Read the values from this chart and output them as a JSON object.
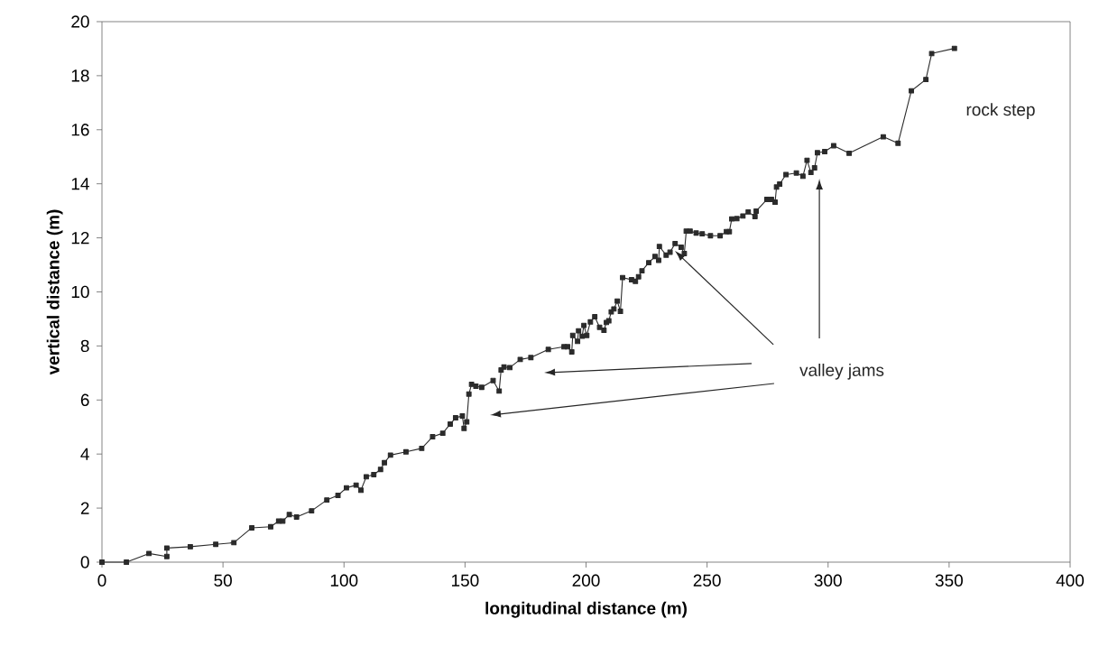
{
  "chart_data": {
    "type": "line",
    "xlabel": "longitudinal distance (m)",
    "ylabel": "vertical distance (m)",
    "xlim": [
      0,
      400
    ],
    "xticks": [
      0,
      50,
      100,
      150,
      200,
      250,
      300,
      350,
      400
    ],
    "ylim": [
      0,
      20
    ],
    "yticks": [
      0,
      2,
      4,
      6,
      8,
      10,
      12,
      14,
      16,
      18,
      20
    ],
    "grid": false,
    "marker": "square",
    "line_style": "solid",
    "annotations": [
      "valley jams",
      "rock step"
    ],
    "series": [
      {
        "color": "#2b2b2b",
        "x": [
          0,
          10.1,
          19.4,
          26.8,
          26.8,
          36.5,
          47,
          54.5,
          61.9,
          69.7,
          73,
          74.7,
          77.4,
          80.4,
          86.6,
          92.9,
          97.5,
          101,
          105,
          107,
          109.2,
          112.3,
          115.1,
          116.7,
          119.2,
          125.6,
          132.1,
          136.6,
          140.8,
          143.9,
          146.1,
          148.9,
          149.6,
          150.7,
          151.6,
          152.7,
          154.5,
          156.9,
          161.6,
          164.1,
          164.9,
          166.1,
          168.5,
          172.8,
          177.2,
          184.4,
          190.9,
          192.4,
          194.1,
          194.5,
          196.5,
          196.9,
          198.4,
          199.1,
          200.3,
          201.8,
          203.6,
          205.6,
          207.4,
          208.4,
          209.4,
          210.4,
          211.5,
          212.9,
          214.2,
          215.1,
          218.8,
          220.4,
          221.7,
          223.1,
          225.9,
          228.5,
          230,
          230.3,
          233.1,
          234.7,
          236.8,
          239.3,
          240.6,
          241.4,
          243,
          245.5,
          248,
          251.4,
          255.4,
          258,
          259.2,
          260.2,
          262.3,
          264.8,
          267,
          269.8,
          270.3,
          274.7,
          276.6,
          278.1,
          278.7,
          280,
          282.6,
          286.9,
          289.6,
          291.3,
          292.9,
          294.4,
          295.6,
          298.6,
          302.3,
          308.7,
          322.8,
          328.9,
          334.4,
          340.4,
          342.8,
          352.2
        ],
        "values": [
          0,
          0,
          0.32,
          0.21,
          0.52,
          0.57,
          0.66,
          0.72,
          1.27,
          1.31,
          1.52,
          1.52,
          1.76,
          1.67,
          1.9,
          2.3,
          2.47,
          2.75,
          2.85,
          2.66,
          3.16,
          3.24,
          3.43,
          3.68,
          3.96,
          4.08,
          4.21,
          4.64,
          4.77,
          5.11,
          5.34,
          5.41,
          4.95,
          5.19,
          6.22,
          6.58,
          6.51,
          6.47,
          6.72,
          6.33,
          7.11,
          7.22,
          7.2,
          7.5,
          7.57,
          7.87,
          7.97,
          7.97,
          7.78,
          8.39,
          8.17,
          8.56,
          8.36,
          8.76,
          8.39,
          8.89,
          9.08,
          8.69,
          8.58,
          8.87,
          8.93,
          9.26,
          9.37,
          9.66,
          9.28,
          10.53,
          10.45,
          10.39,
          10.56,
          10.78,
          11.08,
          11.31,
          11.17,
          11.68,
          11.36,
          11.47,
          11.79,
          11.65,
          11.42,
          12.25,
          12.25,
          12.18,
          12.15,
          12.08,
          12.08,
          12.23,
          12.23,
          12.7,
          12.71,
          12.81,
          12.96,
          12.79,
          12.99,
          13.42,
          13.42,
          13.32,
          13.88,
          13.99,
          14.34,
          14.4,
          14.28,
          14.87,
          14.42,
          14.59,
          15.15,
          15.19,
          15.41,
          15.13,
          15.74,
          15.5,
          17.44,
          17.86,
          18.82,
          19.01
        ]
      }
    ]
  }
}
